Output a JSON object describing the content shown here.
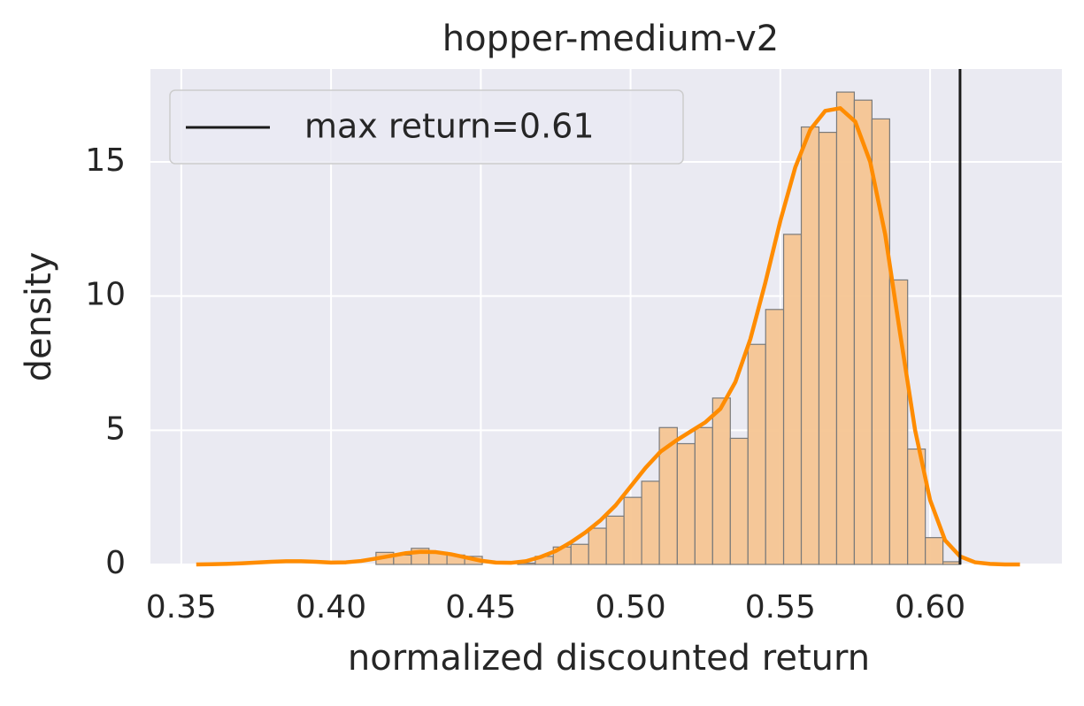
{
  "chart_data": {
    "type": "histogram",
    "title": "hopper-medium-v2",
    "xlabel": "normalized discounted return",
    "ylabel": "density",
    "bins": [
      0.415,
      0.4209,
      0.4268,
      0.4327,
      0.4387,
      0.4446,
      0.4505,
      0.4564,
      0.4623,
      0.4682,
      0.4742,
      0.4801,
      0.486,
      0.4919,
      0.4978,
      0.5037,
      0.5096,
      0.5156,
      0.5215,
      0.5274,
      0.5333,
      0.5392,
      0.5451,
      0.5511,
      0.557,
      0.5629,
      0.5688,
      0.5747,
      0.5806,
      0.5865,
      0.5925,
      0.5984,
      0.6043,
      0.6102
    ],
    "counts": [
      0.45,
      0.35,
      0.6,
      0.45,
      0.35,
      0.3,
      0,
      0,
      0.05,
      0.3,
      0.65,
      0.75,
      1.35,
      1.8,
      2.5,
      3.1,
      5.1,
      4.5,
      5.1,
      6.2,
      4.7,
      8.2,
      9.5,
      12.3,
      16.3,
      16.1,
      17.6,
      17.3,
      16.6,
      10.6,
      4.3,
      1.0,
      0.1
    ],
    "color": "#f5c592",
    "edgecolor": "#7a7a7a",
    "kde": {
      "color": "#ff8c00",
      "x": [
        0.355,
        0.36,
        0.365,
        0.37,
        0.375,
        0.38,
        0.385,
        0.39,
        0.395,
        0.4,
        0.405,
        0.41,
        0.415,
        0.42,
        0.425,
        0.43,
        0.435,
        0.44,
        0.445,
        0.45,
        0.455,
        0.46,
        0.465,
        0.47,
        0.475,
        0.48,
        0.485,
        0.49,
        0.495,
        0.5,
        0.505,
        0.51,
        0.515,
        0.52,
        0.525,
        0.53,
        0.535,
        0.54,
        0.545,
        0.55,
        0.555,
        0.56,
        0.565,
        0.57,
        0.575,
        0.58,
        0.585,
        0.59,
        0.595,
        0.6,
        0.605,
        0.61,
        0.615,
        0.62,
        0.625,
        0.63
      ],
      "values": [
        0.0,
        0.01,
        0.02,
        0.04,
        0.07,
        0.1,
        0.12,
        0.12,
        0.1,
        0.07,
        0.08,
        0.13,
        0.22,
        0.32,
        0.42,
        0.47,
        0.46,
        0.38,
        0.26,
        0.14,
        0.07,
        0.06,
        0.12,
        0.28,
        0.5,
        0.82,
        1.2,
        1.65,
        2.2,
        2.9,
        3.6,
        4.2,
        4.6,
        4.95,
        5.3,
        5.8,
        6.8,
        8.4,
        10.5,
        12.8,
        14.8,
        16.2,
        16.9,
        17.0,
        16.5,
        15.0,
        12.3,
        8.6,
        5.0,
        2.4,
        0.9,
        0.3,
        0.08,
        0.02,
        0.0,
        0.0
      ]
    },
    "vline": {
      "name": "max return=0.61",
      "value": 0.61,
      "color": "#1a1a1a"
    },
    "legend": "upper left",
    "xlim": [
      0.3397,
      0.644
    ],
    "ylim": [
      0,
      18.46
    ],
    "xticks": [
      0.35,
      {
        "value": 0.4,
        "label": "0.40"
      },
      0.45,
      {
        "value": 0.5,
        "label": "0.50"
      },
      0.55,
      {
        "value": 0.6,
        "label": "0.60"
      }
    ],
    "yticks": [
      0,
      5,
      10,
      15
    ],
    "grid": true,
    "background": "#eaeaf2"
  }
}
